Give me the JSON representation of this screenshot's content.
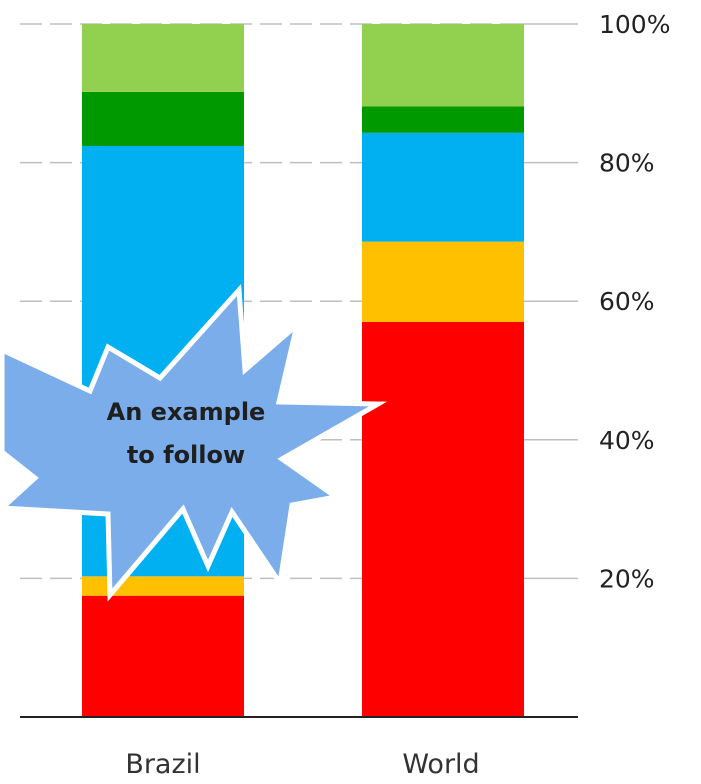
{
  "chart_data": {
    "type": "bar",
    "stacked": true,
    "categories": [
      "Brazil",
      "World"
    ],
    "series": [
      {
        "color": "#ff0000",
        "values": [
          17.5,
          57
        ]
      },
      {
        "color": "#ffc000",
        "values": [
          2.8,
          11.6
        ]
      },
      {
        "color": "#00b0f0",
        "values": [
          62.1,
          15.7
        ]
      },
      {
        "color": "#009900",
        "values": [
          7.8,
          3.8
        ]
      },
      {
        "color": "#92d050",
        "values": [
          9.8,
          11.9
        ]
      }
    ],
    "ylim": [
      0,
      100
    ],
    "yticks": [
      {
        "value": 20,
        "label": "20%"
      },
      {
        "value": 40,
        "label": "40%"
      },
      {
        "value": 60,
        "label": "60%"
      },
      {
        "value": 80,
        "label": "80%"
      },
      {
        "value": 100,
        "label": "100%"
      }
    ],
    "grid": true,
    "legend": "none",
    "annotation": {
      "lines": [
        "An example",
        "to follow"
      ],
      "shape": "starburst",
      "fill": "#7aadea",
      "stroke": "#ffffff"
    }
  }
}
